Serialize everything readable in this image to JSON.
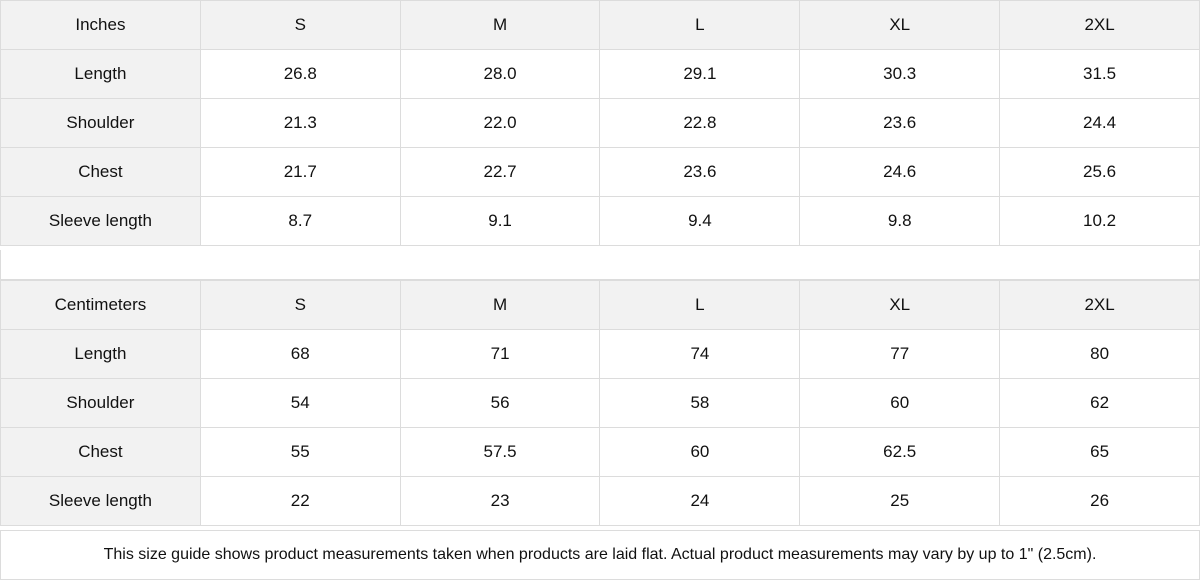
{
  "tables": [
    {
      "unit_label": "Inches",
      "sizes": [
        "S",
        "M",
        "L",
        "XL",
        "2XL"
      ],
      "rows": [
        {
          "label": "Length",
          "values": [
            "26.8",
            "28.0",
            "29.1",
            "30.3",
            "31.5"
          ]
        },
        {
          "label": "Shoulder",
          "values": [
            "21.3",
            "22.0",
            "22.8",
            "23.6",
            "24.4"
          ]
        },
        {
          "label": "Chest",
          "values": [
            "21.7",
            "22.7",
            "23.6",
            "24.6",
            "25.6"
          ]
        },
        {
          "label": "Sleeve length",
          "values": [
            "8.7",
            "9.1",
            "9.4",
            "9.8",
            "10.2"
          ]
        }
      ]
    },
    {
      "unit_label": "Centimeters",
      "sizes": [
        "S",
        "M",
        "L",
        "XL",
        "2XL"
      ],
      "rows": [
        {
          "label": "Length",
          "values": [
            "68",
            "71",
            "74",
            "77",
            "80"
          ]
        },
        {
          "label": "Shoulder",
          "values": [
            "54",
            "56",
            "58",
            "60",
            "62"
          ]
        },
        {
          "label": "Chest",
          "values": [
            "55",
            "57.5",
            "60",
            "62.5",
            "65"
          ]
        },
        {
          "label": "Sleeve length",
          "values": [
            "22",
            "23",
            "24",
            "25",
            "26"
          ]
        }
      ]
    }
  ],
  "footer_note": "This size guide shows product measurements taken when products are laid flat.  Actual product measurements may vary by up to 1\" (2.5cm).",
  "colors": {
    "header_bg": "#f2f2f2",
    "border": "#dcdcdc"
  }
}
